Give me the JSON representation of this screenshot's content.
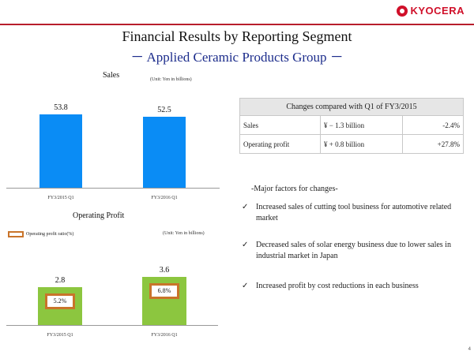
{
  "brand": {
    "logo_text": "KYOCERA",
    "accent": "#b81d2c"
  },
  "title": "Financial Results by Reporting Segment",
  "subtitle": "－ Applied Ceramic Products Group －",
  "sales": {
    "label": "Sales",
    "unit": "(Unit: Yen in billions)",
    "chart_data": {
      "type": "bar",
      "categories": [
        "FY3/2015 Q1",
        "FY3/2016 Q1"
      ],
      "values": [
        53.8,
        52.5
      ],
      "color": "#0a8cf5"
    }
  },
  "operating_profit": {
    "label": "Operating Profit",
    "unit": "(Unit: Yen in billions)",
    "legend": "Operating profit ratio(%)",
    "chart_data": {
      "type": "bar",
      "categories": [
        "FY3/2015 Q1",
        "FY3/2016 Q1"
      ],
      "values": [
        2.8,
        3.6
      ],
      "ratios": [
        "5.2%",
        "6.8%"
      ],
      "color": "#8cc63f"
    }
  },
  "changes": {
    "header": "Changes compared with Q1 of FY3/2015",
    "rows": [
      {
        "label": "Sales",
        "amount": "¥ − 1.3 billion",
        "pct": "-2.4%"
      },
      {
        "label": "Operating profit",
        "amount": "¥ + 0.8 billion",
        "pct": "+27.8%"
      }
    ]
  },
  "factors": {
    "title": "-Major factors for changes-",
    "items": [
      "Increased sales of cutting tool business for automotive related market",
      "Decreased sales of solar energy business due to lower sales in industrial market in Japan",
      "Increased profit by cost reductions in each business"
    ]
  },
  "page_number": "4"
}
